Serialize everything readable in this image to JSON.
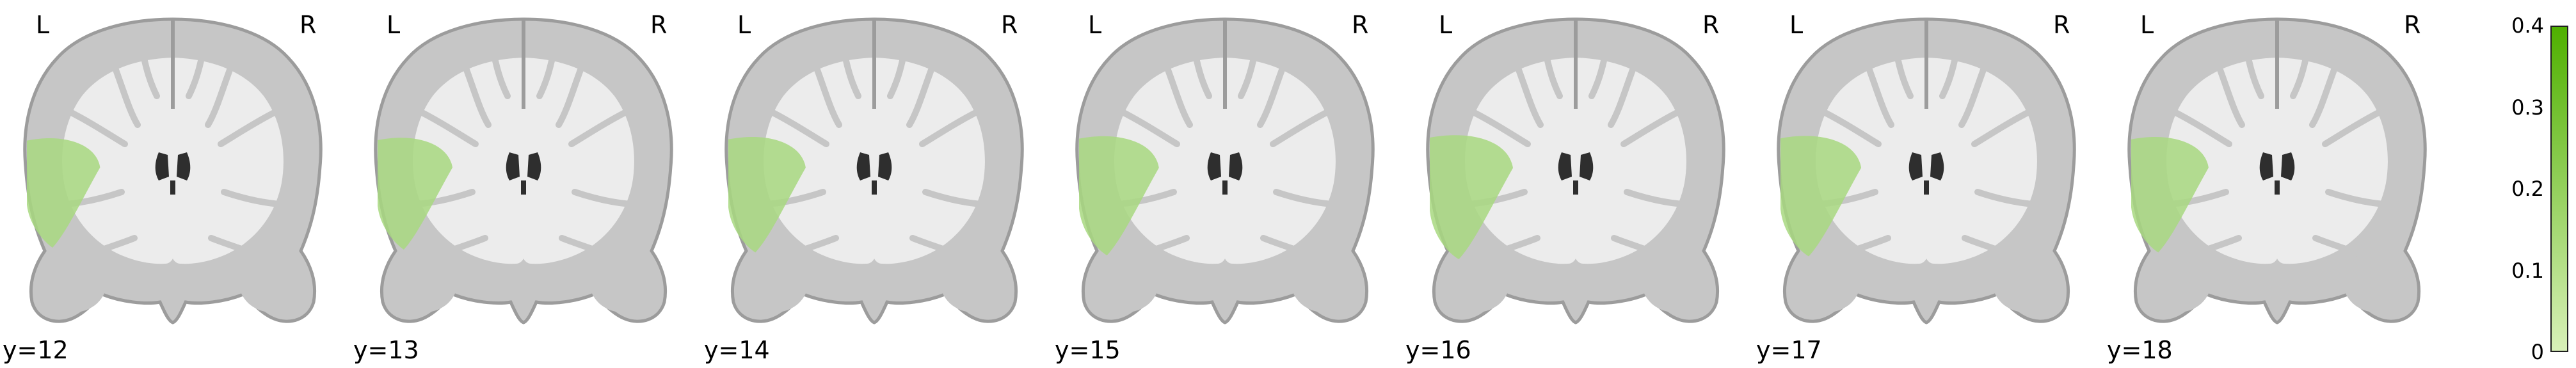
{
  "orientation_labels": {
    "left": "L",
    "right": "R"
  },
  "slices": [
    {
      "label": "y=12",
      "overlay_extent": 0.88
    },
    {
      "label": "y=13",
      "overlay_extent": 0.9
    },
    {
      "label": "y=14",
      "overlay_extent": 0.93
    },
    {
      "label": "y=15",
      "overlay_extent": 0.96
    },
    {
      "label": "y=16",
      "overlay_extent": 1.0
    },
    {
      "label": "y=17",
      "overlay_extent": 0.97
    },
    {
      "label": "y=18",
      "overlay_extent": 0.93
    }
  ],
  "colorbar": {
    "min": 0,
    "max": 0.4,
    "ticks": [
      "0",
      "0.1",
      "0.2",
      "0.3",
      "0.4"
    ],
    "color_low": "#d8f0b8",
    "color_high": "#4fb000"
  },
  "colors": {
    "brain_outer": "#9c9c9c",
    "brain_gray": "#c6c6c6",
    "brain_white": "#ececec",
    "ventricle": "#2e2e2e",
    "overlay": "#a8d880"
  }
}
